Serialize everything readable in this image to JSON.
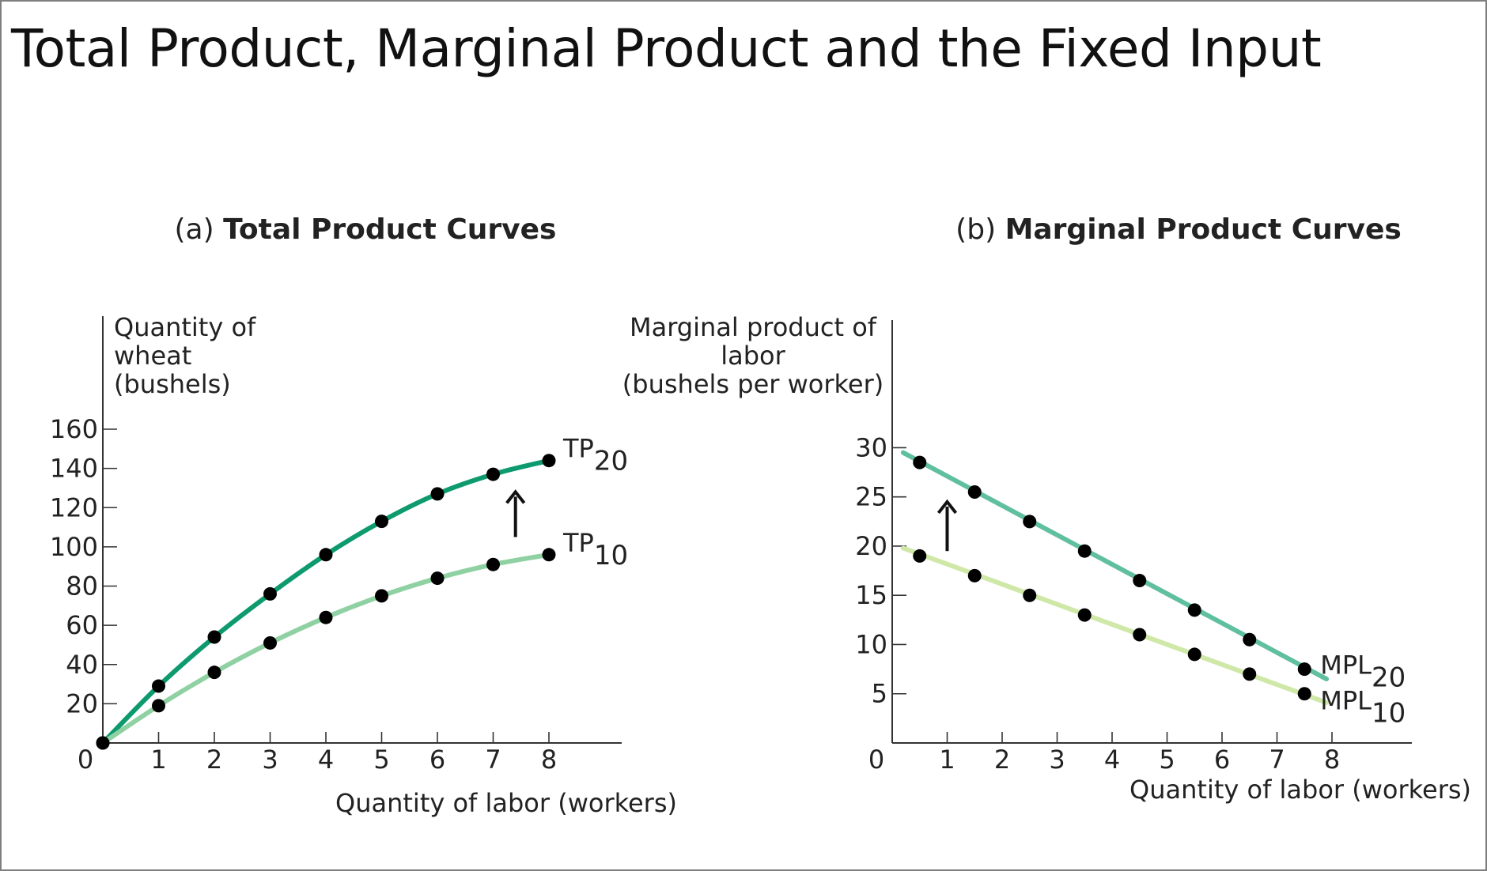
{
  "slide": {
    "title": "Total Product, Marginal Product and the Fixed Input"
  },
  "colors": {
    "dark_green": "#0d9a6e",
    "light_green": "#8fd1a2",
    "teal": "#5fbf9e",
    "pale_green": "#cfe8a8",
    "axis": "#333333",
    "point": "#000000"
  },
  "chart_data": [
    {
      "type": "line",
      "panel": {
        "prefix": "(a)",
        "name": "Total Product Curves"
      },
      "title": "(a) Total Product Curves",
      "ylabel": [
        "Quantity of",
        "wheat",
        "(bushels)"
      ],
      "xlabel": "Quantity of labor (workers)",
      "xlim": [
        0,
        9.5
      ],
      "ylim": [
        0,
        160
      ],
      "xticks": [
        0,
        1,
        2,
        3,
        4,
        5,
        6,
        7,
        8
      ],
      "yticks": [
        20,
        40,
        60,
        80,
        100,
        120,
        140,
        160
      ],
      "origin_label": "0",
      "grid": false,
      "arrow": {
        "x": 7.4,
        "y_from": 105,
        "y_to": 128
      },
      "series": [
        {
          "name": "TP",
          "subscript": "20",
          "color": "#0d9a6e",
          "x": [
            0,
            1,
            2,
            3,
            4,
            5,
            6,
            7,
            8
          ],
          "y": [
            0,
            29,
            54,
            76,
            96,
            113,
            127,
            137,
            144
          ]
        },
        {
          "name": "TP",
          "subscript": "10",
          "color": "#8fd1a2",
          "x": [
            0,
            1,
            2,
            3,
            4,
            5,
            6,
            7,
            8
          ],
          "y": [
            0,
            19,
            36,
            51,
            64,
            75,
            84,
            91,
            96
          ]
        }
      ]
    },
    {
      "type": "line",
      "panel": {
        "prefix": "(b)",
        "name": "Marginal Product Curves"
      },
      "title": "(b) Marginal Product Curves",
      "ylabel": [
        "Marginal product of",
        "labor",
        "(bushels per worker)"
      ],
      "xlabel": "Quantity of labor (workers)",
      "xlim": [
        0,
        9.4
      ],
      "ylim": [
        0,
        31
      ],
      "xticks": [
        1,
        2,
        3,
        4,
        5,
        6,
        7,
        8
      ],
      "yticks": [
        5,
        10,
        15,
        20,
        25,
        30
      ],
      "origin_label": "0",
      "grid": false,
      "arrow": {
        "x": 1,
        "y_from": 19.5,
        "y_to": 24.5
      },
      "series": [
        {
          "name": "MPL",
          "subscript": "20",
          "color": "#5fbf9e",
          "line_x": [
            0.2,
            7.9
          ],
          "line_y": [
            29.5,
            6.5
          ],
          "x": [
            0.5,
            1.5,
            2.5,
            3.5,
            4.5,
            5.5,
            6.5,
            7.5
          ],
          "y": [
            28.5,
            25.5,
            22.5,
            19.5,
            16.5,
            13.5,
            10.5,
            7.5
          ]
        },
        {
          "name": "MPL",
          "subscript": "10",
          "color": "#cfe8a8",
          "line_x": [
            0.2,
            7.9
          ],
          "line_y": [
            19.8,
            4.1
          ],
          "x": [
            0.5,
            1.5,
            2.5,
            3.5,
            4.5,
            5.5,
            6.5,
            7.5
          ],
          "y": [
            19,
            17,
            15,
            13,
            11,
            9,
            7,
            5
          ]
        }
      ]
    }
  ]
}
